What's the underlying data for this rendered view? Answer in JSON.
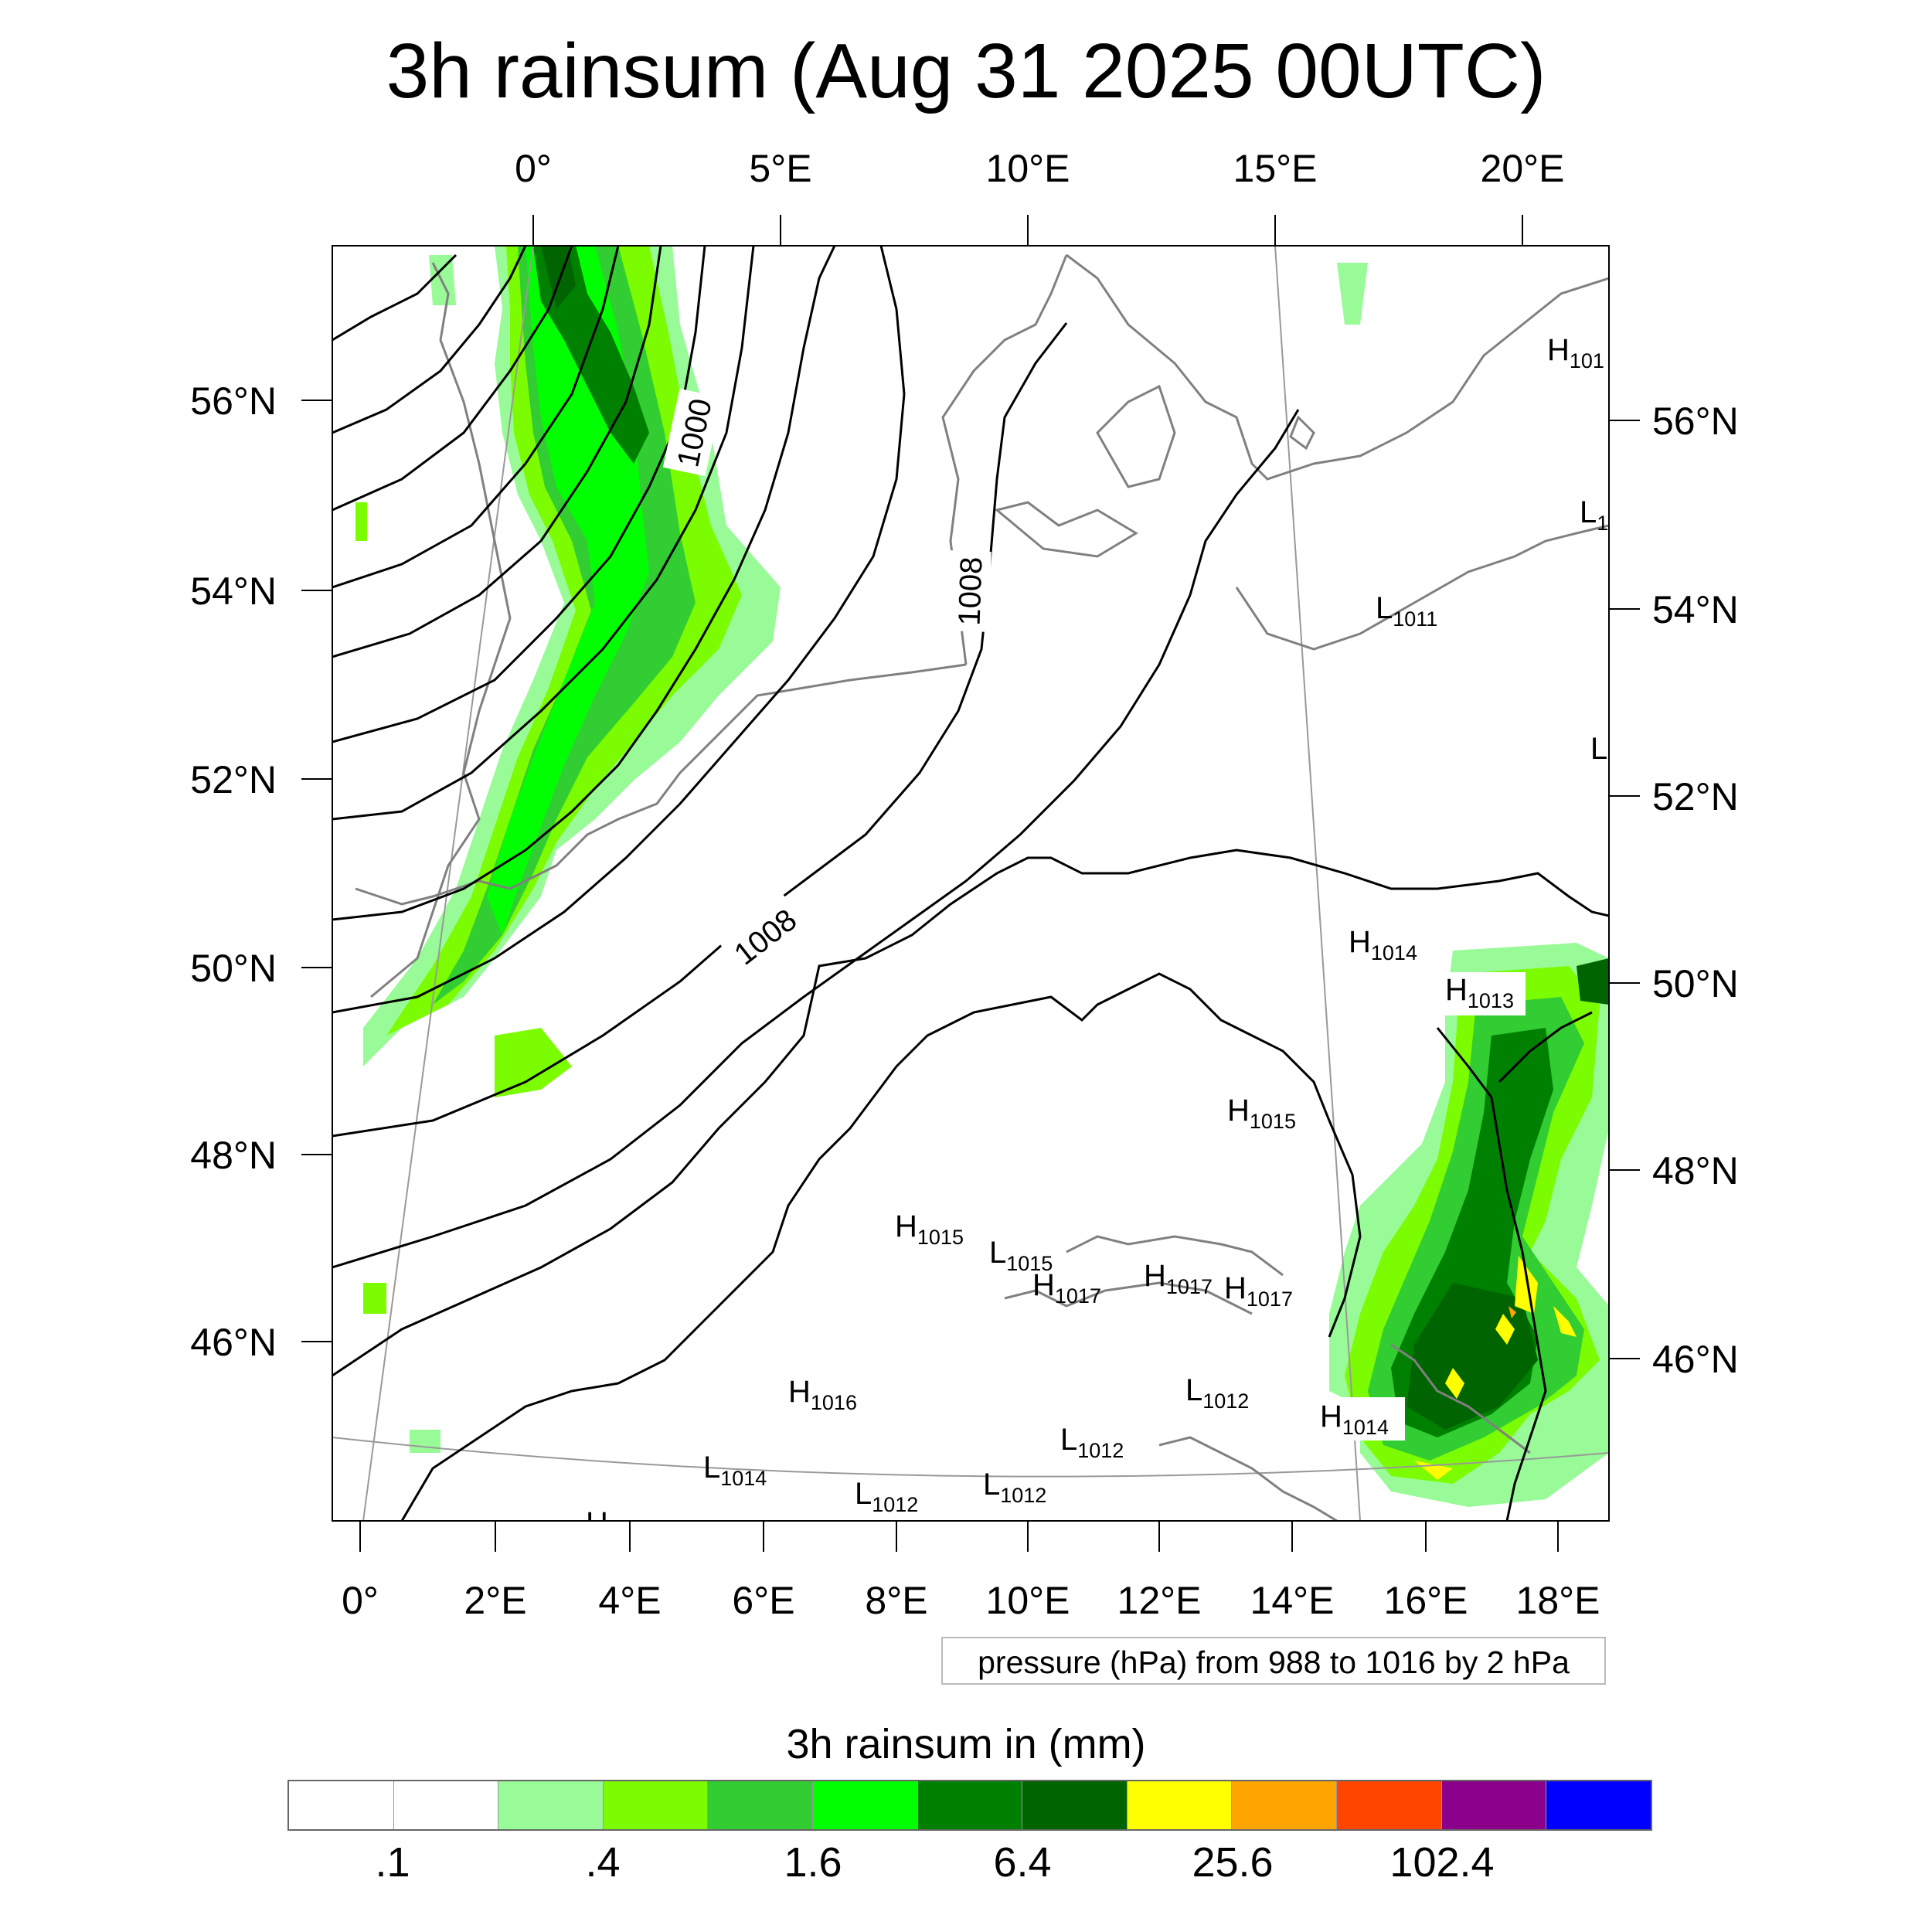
{
  "title": "3h rainsum (Aug 31 2025 00UTC)",
  "top_lon_labels": [
    "0°",
    "5°E",
    "10°E",
    "15°E",
    "20°E"
  ],
  "bottom_lon_labels": [
    "0°",
    "2°E",
    "4°E",
    "6°E",
    "8°E",
    "10°E",
    "12°E",
    "14°E",
    "16°E",
    "18°E"
  ],
  "left_lat_labels": [
    "56°N",
    "54°N",
    "52°N",
    "50°N",
    "48°N",
    "46°N"
  ],
  "right_lat_labels": [
    "56°N",
    "54°N",
    "52°N",
    "50°N",
    "48°N",
    "46°N"
  ],
  "contour_labels": [
    "1000",
    "1008",
    "1008"
  ],
  "pressure_centers": [
    {
      "letter": "H",
      "value": "101"
    },
    {
      "letter": "L",
      "value": "1"
    },
    {
      "letter": "L",
      "value": "1011"
    },
    {
      "letter": "L",
      "value": ""
    },
    {
      "letter": "H",
      "value": "1014"
    },
    {
      "letter": "H",
      "value": "1013"
    },
    {
      "letter": "H",
      "value": "1015"
    },
    {
      "letter": "H",
      "value": "1015"
    },
    {
      "letter": "L",
      "value": "1015"
    },
    {
      "letter": "H",
      "value": "1017"
    },
    {
      "letter": "H",
      "value": "1017"
    },
    {
      "letter": "H",
      "value": "1017"
    },
    {
      "letter": "H",
      "value": "1016"
    },
    {
      "letter": "L",
      "value": "1012"
    },
    {
      "letter": "H",
      "value": "1014"
    },
    {
      "letter": "L",
      "value": "1012"
    },
    {
      "letter": "L",
      "value": "1014"
    },
    {
      "letter": "L",
      "value": "1012"
    },
    {
      "letter": "L",
      "value": "1012"
    },
    {
      "letter": "H",
      "value": ""
    }
  ],
  "info_text": "pressure (hPa) from 988 to 1016 by 2 hPa",
  "colorbar": {
    "title": "3h rainsum in (mm)",
    "colors": [
      "#ffffff",
      "#ffffff",
      "#98fb98",
      "#7cfc00",
      "#32cd32",
      "#00ff00",
      "#008000",
      "#006400",
      "#ffff00",
      "#ffa500",
      "#ff4500",
      "#8b008b",
      "#0000ff"
    ],
    "tick_labels": [
      ".1",
      ".4",
      "1.6",
      "6.4",
      "25.6",
      "102.4"
    ]
  }
}
